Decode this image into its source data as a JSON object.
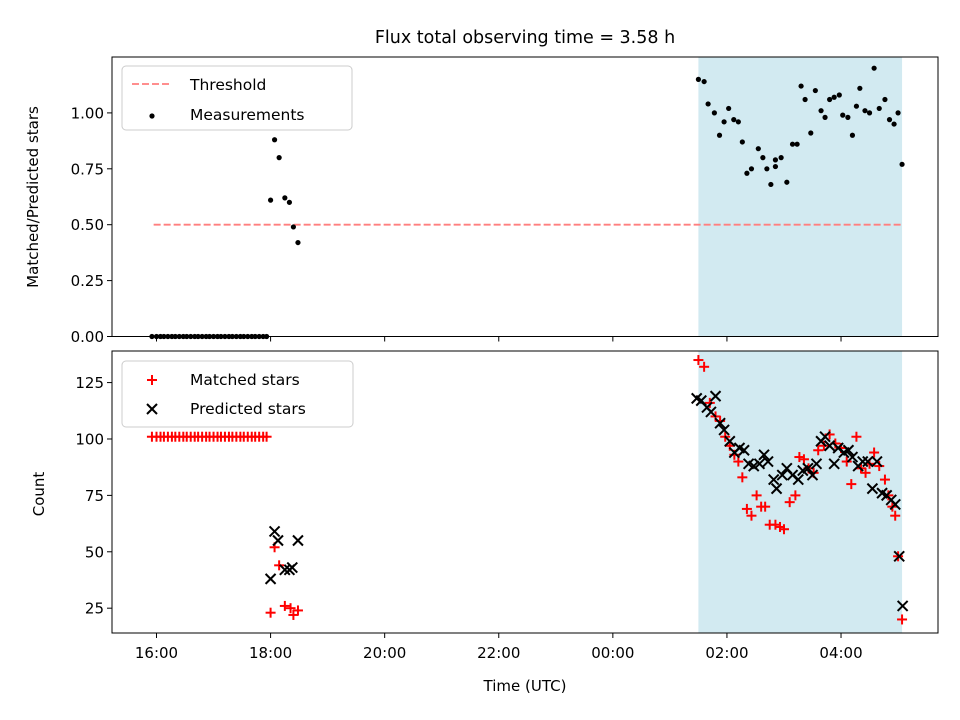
{
  "title": "Flux total observing time = 3.58 h",
  "colors": {
    "threshold": "#ff7f7f",
    "measurement": "#000000",
    "matched": "#ff0000",
    "predicted": "#000000",
    "span": "#add8e6"
  },
  "chart_data": [
    {
      "type": "scatter",
      "ylabel": "Matched/Predicted stars",
      "ylim": [
        0.0,
        1.25
      ],
      "yticks": [
        0.0,
        0.25,
        0.5,
        0.75,
        1.0
      ],
      "ytick_labels": [
        "0.00",
        "0.25",
        "0.50",
        "0.75",
        "1.00"
      ],
      "grid": false,
      "legend_position": "top-left",
      "legend": [
        {
          "label": "Threshold",
          "kind": "dashed-line"
        },
        {
          "label": "Measurements",
          "kind": "dot"
        }
      ],
      "threshold": {
        "value": 0.5,
        "from": 15.95,
        "to": 29.07
      },
      "shaded_span": [
        25.5,
        29.07
      ],
      "series": [
        {
          "name": "Measurements",
          "points": [
            [
              15.92,
              0.0
            ],
            [
              16.0,
              0.0
            ],
            [
              16.07,
              0.0
            ],
            [
              16.13,
              0.0
            ],
            [
              16.2,
              0.0
            ],
            [
              16.27,
              0.0
            ],
            [
              16.33,
              0.0
            ],
            [
              16.4,
              0.0
            ],
            [
              16.47,
              0.0
            ],
            [
              16.53,
              0.0
            ],
            [
              16.6,
              0.0
            ],
            [
              16.67,
              0.0
            ],
            [
              16.73,
              0.0
            ],
            [
              16.8,
              0.0
            ],
            [
              16.87,
              0.0
            ],
            [
              16.93,
              0.0
            ],
            [
              17.0,
              0.0
            ],
            [
              17.07,
              0.0
            ],
            [
              17.13,
              0.0
            ],
            [
              17.2,
              0.0
            ],
            [
              17.27,
              0.0
            ],
            [
              17.33,
              0.0
            ],
            [
              17.4,
              0.0
            ],
            [
              17.47,
              0.0
            ],
            [
              17.53,
              0.0
            ],
            [
              17.6,
              0.0
            ],
            [
              17.67,
              0.0
            ],
            [
              17.73,
              0.0
            ],
            [
              17.8,
              0.0
            ],
            [
              17.87,
              0.0
            ],
            [
              17.93,
              0.0
            ],
            [
              18.0,
              0.61
            ],
            [
              18.07,
              0.88
            ],
            [
              18.15,
              0.8
            ],
            [
              18.25,
              0.62
            ],
            [
              18.33,
              0.6
            ],
            [
              18.4,
              0.49
            ],
            [
              18.48,
              0.42
            ],
            [
              25.5,
              1.15
            ],
            [
              25.6,
              1.14
            ],
            [
              25.67,
              1.04
            ],
            [
              25.78,
              1.0
            ],
            [
              25.87,
              0.9
            ],
            [
              25.95,
              0.96
            ],
            [
              26.03,
              1.02
            ],
            [
              26.12,
              0.97
            ],
            [
              26.2,
              0.96
            ],
            [
              26.27,
              0.87
            ],
            [
              26.35,
              0.73
            ],
            [
              26.43,
              0.75
            ],
            [
              26.55,
              0.84
            ],
            [
              26.63,
              0.8
            ],
            [
              26.7,
              0.75
            ],
            [
              26.77,
              0.68
            ],
            [
              26.85,
              0.79
            ],
            [
              26.85,
              0.76
            ],
            [
              26.95,
              0.8
            ],
            [
              27.05,
              0.69
            ],
            [
              27.15,
              0.86
            ],
            [
              27.23,
              0.86
            ],
            [
              27.3,
              1.12
            ],
            [
              27.37,
              1.06
            ],
            [
              27.47,
              0.91
            ],
            [
              27.55,
              1.1
            ],
            [
              27.65,
              1.01
            ],
            [
              27.72,
              0.98
            ],
            [
              27.8,
              1.06
            ],
            [
              27.88,
              1.07
            ],
            [
              27.97,
              1.08
            ],
            [
              28.03,
              0.99
            ],
            [
              28.12,
              0.98
            ],
            [
              28.2,
              0.9
            ],
            [
              28.27,
              1.03
            ],
            [
              28.33,
              1.11
            ],
            [
              28.42,
              1.01
            ],
            [
              28.5,
              1.0
            ],
            [
              28.58,
              1.2
            ],
            [
              28.67,
              1.02
            ],
            [
              28.77,
              1.06
            ],
            [
              28.85,
              0.97
            ],
            [
              28.93,
              0.95
            ],
            [
              29.0,
              1.0
            ],
            [
              29.07,
              0.77
            ]
          ]
        }
      ]
    },
    {
      "type": "scatter",
      "ylabel": "Count",
      "xlabel": "Time (UTC)",
      "ylim": [
        14,
        139
      ],
      "yticks": [
        25,
        50,
        75,
        100,
        125
      ],
      "ytick_labels": [
        "25",
        "50",
        "75",
        "100",
        "125"
      ],
      "xlim": [
        15.22,
        29.7
      ],
      "xticks": [
        16,
        18,
        20,
        22,
        24,
        26,
        28
      ],
      "xtick_labels": [
        "16:00",
        "18:00",
        "20:00",
        "22:00",
        "00:00",
        "02:00",
        "04:00"
      ],
      "grid": false,
      "legend_position": "top-left",
      "legend": [
        {
          "label": "Matched stars",
          "kind": "plus"
        },
        {
          "label": "Predicted stars",
          "kind": "cross"
        }
      ],
      "shaded_span": [
        25.5,
        29.07
      ],
      "series": [
        {
          "name": "Matched stars",
          "points": [
            [
              15.92,
              101
            ],
            [
              16.0,
              101
            ],
            [
              16.07,
              101
            ],
            [
              16.13,
              101
            ],
            [
              16.2,
              101
            ],
            [
              16.27,
              101
            ],
            [
              16.33,
              101
            ],
            [
              16.4,
              101
            ],
            [
              16.47,
              101
            ],
            [
              16.53,
              101
            ],
            [
              16.6,
              101
            ],
            [
              16.67,
              101
            ],
            [
              16.73,
              101
            ],
            [
              16.8,
              101
            ],
            [
              16.87,
              101
            ],
            [
              16.93,
              101
            ],
            [
              17.0,
              101
            ],
            [
              17.07,
              101
            ],
            [
              17.13,
              101
            ],
            [
              17.2,
              101
            ],
            [
              17.27,
              101
            ],
            [
              17.33,
              101
            ],
            [
              17.4,
              101
            ],
            [
              17.47,
              101
            ],
            [
              17.53,
              101
            ],
            [
              17.6,
              101
            ],
            [
              17.67,
              101
            ],
            [
              17.73,
              101
            ],
            [
              17.8,
              101
            ],
            [
              17.87,
              101
            ],
            [
              17.93,
              101
            ],
            [
              18.0,
              23
            ],
            [
              18.07,
              52
            ],
            [
              18.15,
              44
            ],
            [
              18.25,
              26
            ],
            [
              18.35,
              25
            ],
            [
              18.4,
              22
            ],
            [
              18.48,
              24
            ],
            [
              25.5,
              135
            ],
            [
              25.6,
              132
            ],
            [
              25.7,
              116
            ],
            [
              25.8,
              110
            ],
            [
              25.88,
              108
            ],
            [
              25.97,
              101
            ],
            [
              26.05,
              97
            ],
            [
              26.13,
              93
            ],
            [
              26.2,
              90
            ],
            [
              26.27,
              83
            ],
            [
              26.35,
              69
            ],
            [
              26.43,
              66
            ],
            [
              26.52,
              75
            ],
            [
              26.6,
              70
            ],
            [
              26.67,
              70
            ],
            [
              26.75,
              62
            ],
            [
              26.85,
              62
            ],
            [
              26.93,
              61
            ],
            [
              27.0,
              60
            ],
            [
              27.1,
              72
            ],
            [
              27.2,
              75
            ],
            [
              27.27,
              92
            ],
            [
              27.35,
              91
            ],
            [
              27.43,
              87
            ],
            [
              27.52,
              85
            ],
            [
              27.6,
              95
            ],
            [
              27.7,
              97
            ],
            [
              27.8,
              102
            ],
            [
              27.9,
              98
            ],
            [
              28.0,
              96
            ],
            [
              28.1,
              90
            ],
            [
              28.18,
              80
            ],
            [
              28.27,
              101
            ],
            [
              28.35,
              87
            ],
            [
              28.43,
              85
            ],
            [
              28.5,
              89
            ],
            [
              28.58,
              94
            ],
            [
              28.67,
              88
            ],
            [
              28.77,
              82
            ],
            [
              28.83,
              75
            ],
            [
              28.9,
              70
            ],
            [
              28.95,
              66
            ],
            [
              29.0,
              48
            ],
            [
              29.07,
              20
            ]
          ]
        },
        {
          "name": "Predicted stars",
          "points": [
            [
              18.0,
              38
            ],
            [
              18.07,
              59
            ],
            [
              18.13,
              55
            ],
            [
              18.25,
              42
            ],
            [
              18.33,
              42
            ],
            [
              18.38,
              43
            ],
            [
              18.48,
              55
            ],
            [
              25.47,
              118
            ],
            [
              25.55,
              117
            ],
            [
              25.65,
              114
            ],
            [
              25.72,
              112
            ],
            [
              25.8,
              119
            ],
            [
              25.88,
              107
            ],
            [
              25.95,
              104
            ],
            [
              26.05,
              99
            ],
            [
              26.13,
              94
            ],
            [
              26.22,
              96
            ],
            [
              26.3,
              95
            ],
            [
              26.38,
              89
            ],
            [
              26.47,
              88
            ],
            [
              26.57,
              89
            ],
            [
              26.65,
              93
            ],
            [
              26.72,
              90
            ],
            [
              26.82,
              82
            ],
            [
              26.87,
              78
            ],
            [
              26.97,
              84
            ],
            [
              27.05,
              87
            ],
            [
              27.15,
              84
            ],
            [
              27.25,
              82
            ],
            [
              27.33,
              86
            ],
            [
              27.42,
              87
            ],
            [
              27.5,
              84
            ],
            [
              27.57,
              89
            ],
            [
              27.65,
              99
            ],
            [
              27.72,
              101
            ],
            [
              27.8,
              97
            ],
            [
              27.88,
              89
            ],
            [
              27.95,
              96
            ],
            [
              28.05,
              94
            ],
            [
              28.13,
              95
            ],
            [
              28.2,
              92
            ],
            [
              28.3,
              88
            ],
            [
              28.38,
              90
            ],
            [
              28.47,
              90
            ],
            [
              28.55,
              78
            ],
            [
              28.63,
              90
            ],
            [
              28.72,
              76
            ],
            [
              28.8,
              75
            ],
            [
              28.88,
              73
            ],
            [
              28.95,
              71
            ],
            [
              29.02,
              48
            ],
            [
              29.08,
              26
            ]
          ]
        }
      ]
    }
  ]
}
